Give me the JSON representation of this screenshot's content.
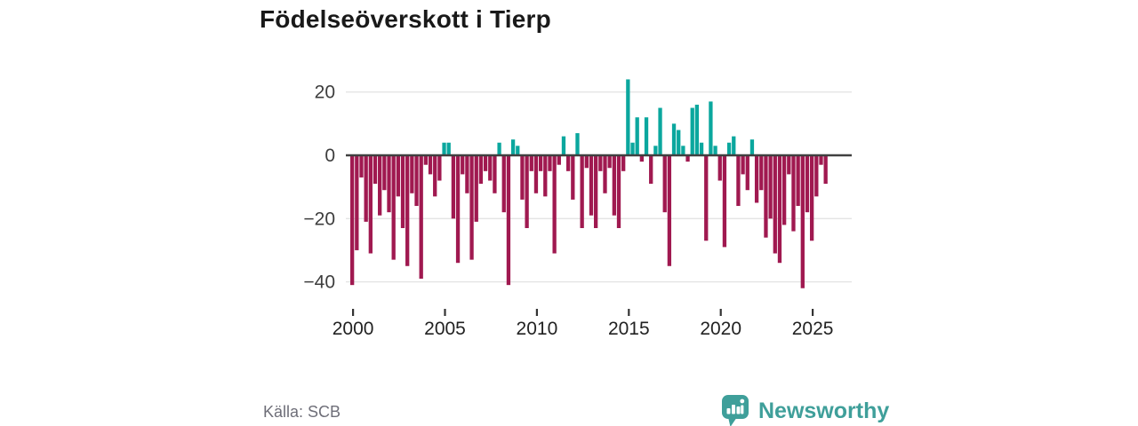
{
  "title": "Födelseöverskott i Tierp",
  "source": "Källa: SCB",
  "branding": {
    "wordmark": "Newsworthy",
    "brand_color": "#3f9f9a"
  },
  "colors": {
    "background": "#ffffff",
    "title_text": "#191919",
    "positive_bar": "#0ba79e",
    "negative_bar": "#a01950",
    "gridline": "#e4e4e4",
    "zero_axis": "#404040",
    "tick_mark": "#333333",
    "tick_label": "#3d3d3d",
    "source_text": "#6e6e78"
  },
  "chart_data": {
    "type": "bar",
    "title": "Födelseöverskott i Tierp",
    "xlabel": "",
    "ylabel": "",
    "x_start_year": 2000,
    "points_per_year": 4,
    "x_tick_years": [
      2000,
      2005,
      2010,
      2015,
      2020,
      2025
    ],
    "x_tick_labels": [
      "2000",
      "2005",
      "2010",
      "2015",
      "2020",
      "2025"
    ],
    "y_ticks": [
      20,
      0,
      -20,
      -40
    ],
    "y_tick_labels": [
      "20",
      "0",
      "−20",
      "−40"
    ],
    "ylim": [
      -47,
      26
    ],
    "grid": "horizontal",
    "legend": "none",
    "values": [
      -41,
      -30,
      -7,
      -21,
      -31,
      -9,
      -19,
      -11,
      -18,
      -33,
      -13,
      -23,
      -35,
      -12,
      -16,
      -39,
      -3,
      -6,
      -13,
      -8,
      4,
      4,
      -20,
      -34,
      -6,
      -12,
      -33,
      -21,
      -9,
      -5,
      -8,
      -12,
      4,
      -18,
      -41,
      5,
      3,
      -14,
      -23,
      -5,
      -12,
      -5,
      -13,
      -5,
      -31,
      -3,
      6,
      -5,
      -14,
      7,
      -23,
      -4,
      -19,
      -23,
      -5,
      -12,
      -4,
      -19,
      -23,
      -5,
      24,
      4,
      12,
      -2,
      12,
      -9,
      3,
      15,
      -18,
      -35,
      10,
      8,
      3,
      -2,
      15,
      16,
      4,
      -27,
      17,
      3,
      -8,
      -29,
      4,
      6,
      -16,
      -6,
      -11,
      5,
      -15,
      -11,
      -26,
      -20,
      -31,
      -34,
      -22,
      -6,
      -24,
      -16,
      -42,
      -18,
      -27,
      -13,
      -3,
      -9
    ]
  }
}
